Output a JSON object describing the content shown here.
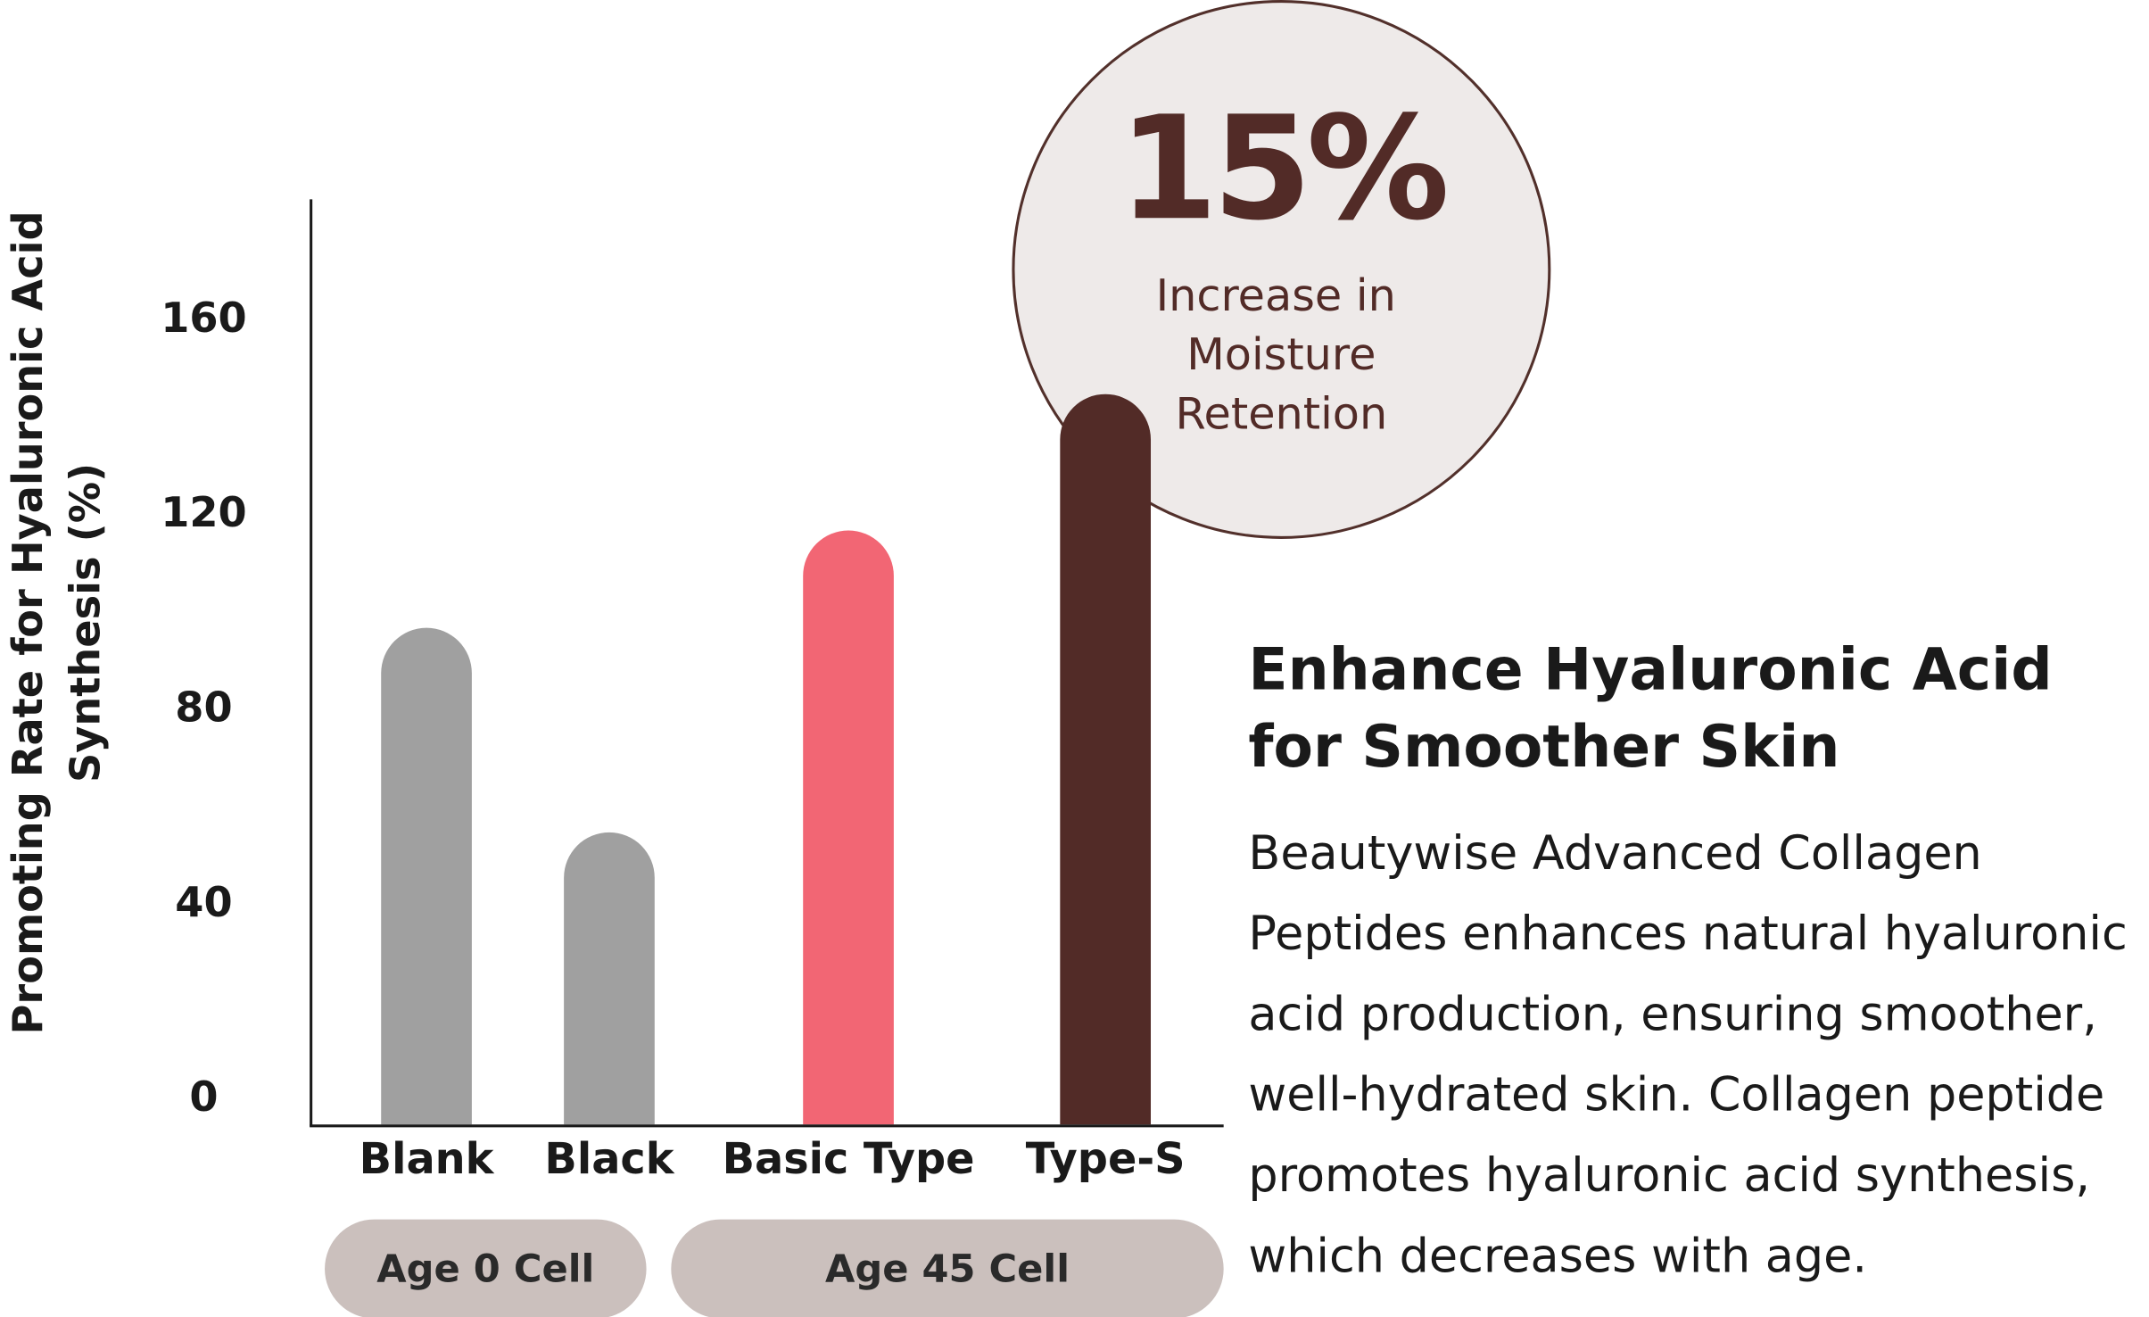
{
  "chart_data": {
    "type": "bar",
    "y_label": [
      "Promoting Rate for Hyaluronic Acid",
      "Synthesis (%)"
    ],
    "categories": [
      "Blank",
      "Black",
      "Basic Type",
      "Type-S"
    ],
    "values": [
      102,
      60,
      122,
      150
    ],
    "colors": [
      "#a0a0a0",
      "#a0a0a0",
      "#f26674",
      "#522b27"
    ],
    "groups": [
      {
        "label": "Age 0 Cell"
      },
      {
        "label": "Age 45 Cell"
      }
    ],
    "ylim": [
      0,
      190
    ],
    "yticks": [
      0,
      40,
      80,
      120,
      160
    ],
    "callout": {
      "label": "15%",
      "text": [
        "Increase in",
        "Moisture",
        "Retention"
      ]
    }
  },
  "side": {
    "heading": [
      "Enhance Hyaluronic Acid",
      "for Smoother Skin"
    ],
    "body": [
      "Beautywise Advanced Collagen",
      "Peptides enhances natural hyaluronic",
      "acid production, ensuring smoother,",
      "well-hydrated skin. Collagen peptide",
      "promotes hyaluronic acid synthesis,",
      "which decreases with age."
    ]
  }
}
